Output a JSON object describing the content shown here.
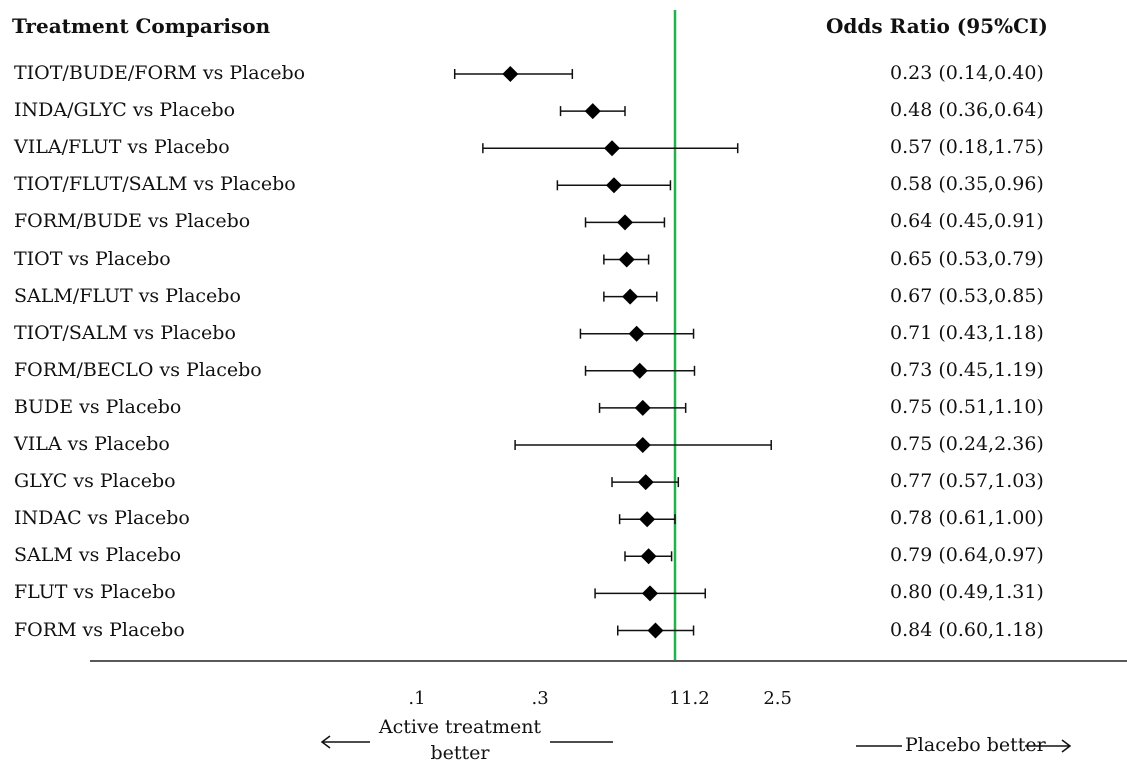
{
  "header": {
    "left": "Treatment Comparison",
    "right": "Odds Ratio (95%CI)"
  },
  "chart_data": {
    "type": "forest",
    "x_scale": "log",
    "reference_line": 1,
    "reference_line_color": "#21b24a",
    "x_ticks": [
      ".1",
      ".3",
      "1",
      "1.2",
      "2.5"
    ],
    "rows": [
      {
        "label": "TIOT/BUDE/FORM vs Placebo",
        "or": 0.23,
        "lo": 0.14,
        "hi": 0.4,
        "text": "0.23 (0.14,0.40)"
      },
      {
        "label": "INDA/GLYC vs Placebo",
        "or": 0.48,
        "lo": 0.36,
        "hi": 0.64,
        "text": "0.48 (0.36,0.64)"
      },
      {
        "label": "VILA/FLUT vs Placebo",
        "or": 0.57,
        "lo": 0.18,
        "hi": 1.75,
        "text": "0.57 (0.18,1.75)"
      },
      {
        "label": "TIOT/FLUT/SALM vs Placebo",
        "or": 0.58,
        "lo": 0.35,
        "hi": 0.96,
        "text": "0.58 (0.35,0.96)"
      },
      {
        "label": "FORM/BUDE vs Placebo",
        "or": 0.64,
        "lo": 0.45,
        "hi": 0.91,
        "text": "0.64 (0.45,0.91)"
      },
      {
        "label": "TIOT vs Placebo",
        "or": 0.65,
        "lo": 0.53,
        "hi": 0.79,
        "text": "0.65 (0.53,0.79)"
      },
      {
        "label": "SALM/FLUT vs Placebo",
        "or": 0.67,
        "lo": 0.53,
        "hi": 0.85,
        "text": "0.67 (0.53,0.85)"
      },
      {
        "label": "TIOT/SALM vs Placebo",
        "or": 0.71,
        "lo": 0.43,
        "hi": 1.18,
        "text": "0.71 (0.43,1.18)"
      },
      {
        "label": "FORM/BECLO vs Placebo",
        "or": 0.73,
        "lo": 0.45,
        "hi": 1.19,
        "text": "0.73 (0.45,1.19)"
      },
      {
        "label": "BUDE vs Placebo",
        "or": 0.75,
        "lo": 0.51,
        "hi": 1.1,
        "text": "0.75 (0.51,1.10)"
      },
      {
        "label": "VILA vs Placebo",
        "or": 0.75,
        "lo": 0.24,
        "hi": 2.36,
        "text": "0.75 (0.24,2.36)"
      },
      {
        "label": "GLYC vs Placebo",
        "or": 0.77,
        "lo": 0.57,
        "hi": 1.03,
        "text": "0.77 (0.57,1.03)"
      },
      {
        "label": "INDAC vs Placebo",
        "or": 0.78,
        "lo": 0.61,
        "hi": 1.0,
        "text": "0.78 (0.61,1.00)"
      },
      {
        "label": "SALM vs Placebo",
        "or": 0.79,
        "lo": 0.64,
        "hi": 0.97,
        "text": "0.79 (0.64,0.97)"
      },
      {
        "label": "FLUT vs Placebo",
        "or": 0.8,
        "lo": 0.49,
        "hi": 1.31,
        "text": "0.80 (0.49,1.31)"
      },
      {
        "label": "FORM vs Placebo",
        "or": 0.84,
        "lo": 0.6,
        "hi": 1.18,
        "text": "0.84 (0.60,1.18)"
      }
    ]
  },
  "footer": {
    "left": "Active treatment better",
    "right": "Placebo better"
  }
}
